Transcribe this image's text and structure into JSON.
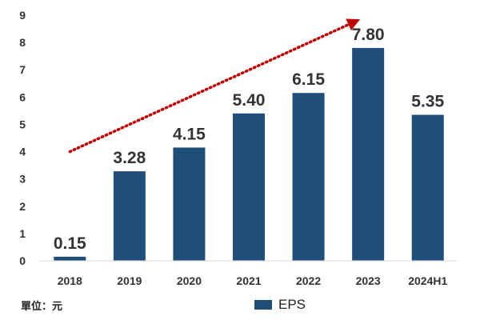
{
  "chart_data": {
    "type": "bar",
    "categories": [
      "2018",
      "2019",
      "2020",
      "2021",
      "2022",
      "2023",
      "2024H1"
    ],
    "series": [
      {
        "name": "EPS",
        "values": [
          0.15,
          3.28,
          4.15,
          5.4,
          6.15,
          7.8,
          5.35
        ]
      }
    ],
    "data_labels": [
      "0.15",
      "3.28",
      "4.15",
      "5.40",
      "6.15",
      "7.80",
      "5.35"
    ],
    "yticks": [
      0,
      1,
      2,
      3,
      4,
      5,
      6,
      7,
      8,
      9
    ],
    "ylim": [
      0,
      9
    ],
    "grid": false,
    "legend": "bottom-center",
    "unit_note": "單位：元",
    "trend_arrow": {
      "from": {
        "category": "2018",
        "y": 4.0
      },
      "to": {
        "category": "2023",
        "y": 8.85
      },
      "style": "dotted",
      "color": "#c00000"
    },
    "colors": {
      "bar": "#1f4e79",
      "axis": "#d9d9d9",
      "arrow": "#c00000"
    }
  }
}
